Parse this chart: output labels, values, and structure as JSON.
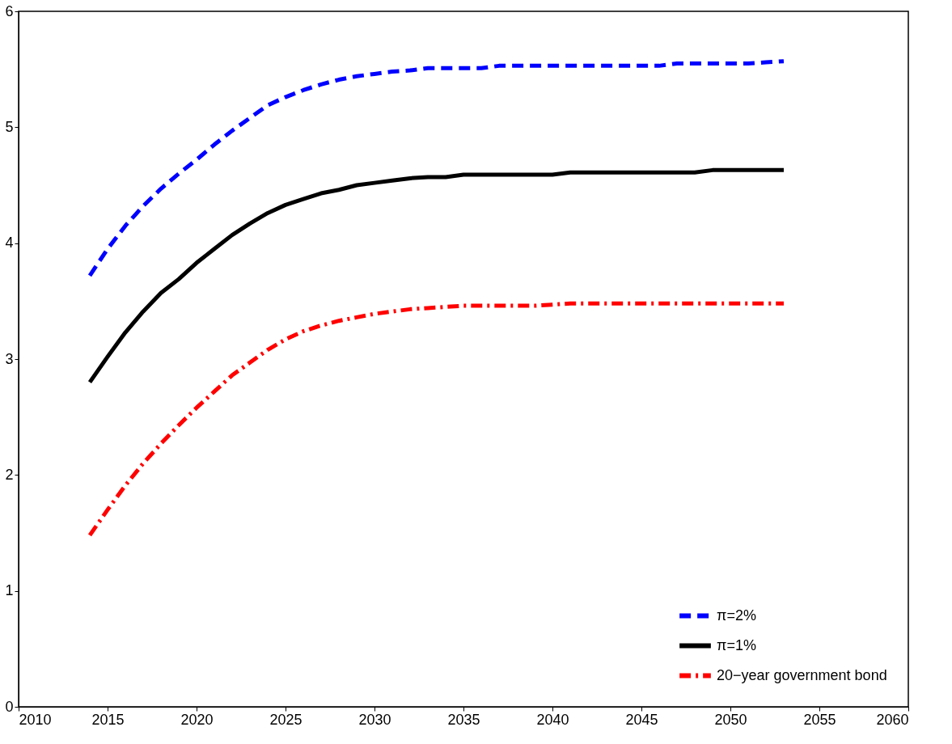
{
  "chart_data": {
    "type": "line",
    "x": [
      2014,
      2015,
      2016,
      2017,
      2018,
      2019,
      2020,
      2021,
      2022,
      2023,
      2024,
      2025,
      2026,
      2027,
      2028,
      2029,
      2030,
      2031,
      2032,
      2033,
      2034,
      2035,
      2036,
      2037,
      2038,
      2039,
      2040,
      2041,
      2042,
      2043,
      2044,
      2045,
      2046,
      2047,
      2048,
      2049,
      2050,
      2051,
      2052,
      2053
    ],
    "series": [
      {
        "name": "π=2%",
        "color": "#0000ff",
        "line_style": "dashed",
        "values": [
          3.72,
          3.95,
          4.15,
          4.32,
          4.47,
          4.6,
          4.72,
          4.85,
          4.97,
          5.08,
          5.19,
          5.26,
          5.32,
          5.37,
          5.41,
          5.44,
          5.46,
          5.48,
          5.49,
          5.51,
          5.51,
          5.51,
          5.51,
          5.53,
          5.53,
          5.53,
          5.53,
          5.53,
          5.53,
          5.53,
          5.53,
          5.53,
          5.53,
          5.55,
          5.55,
          5.55,
          5.55,
          5.55,
          5.56,
          5.57
        ]
      },
      {
        "name": "π=1%",
        "color": "#000000",
        "line_style": "solid",
        "values": [
          2.8,
          3.02,
          3.23,
          3.41,
          3.57,
          3.69,
          3.83,
          3.95,
          4.07,
          4.17,
          4.26,
          4.33,
          4.38,
          4.43,
          4.46,
          4.5,
          4.52,
          4.54,
          4.56,
          4.57,
          4.57,
          4.59,
          4.59,
          4.59,
          4.59,
          4.59,
          4.59,
          4.61,
          4.61,
          4.61,
          4.61,
          4.61,
          4.61,
          4.61,
          4.61,
          4.63,
          4.63,
          4.63,
          4.63,
          4.63
        ]
      },
      {
        "name": "20−year government bond",
        "color": "#ff0000",
        "line_style": "dashdot",
        "values": [
          1.48,
          1.7,
          1.91,
          2.1,
          2.27,
          2.43,
          2.58,
          2.72,
          2.86,
          2.97,
          3.08,
          3.17,
          3.24,
          3.29,
          3.33,
          3.36,
          3.39,
          3.41,
          3.43,
          3.44,
          3.45,
          3.46,
          3.46,
          3.46,
          3.46,
          3.46,
          3.47,
          3.48,
          3.48,
          3.48,
          3.48,
          3.48,
          3.48,
          3.48,
          3.48,
          3.48,
          3.48,
          3.48,
          3.48,
          3.48
        ]
      }
    ],
    "xlim": [
      2010,
      2060
    ],
    "xticks": [
      2010,
      2015,
      2020,
      2025,
      2030,
      2035,
      2040,
      2045,
      2050,
      2055,
      2060
    ],
    "ylim": [
      0,
      6
    ],
    "yticks": [
      0,
      1,
      2,
      3,
      4,
      5,
      6
    ],
    "grid": false,
    "legend": "bottom right",
    "marker": "none"
  }
}
